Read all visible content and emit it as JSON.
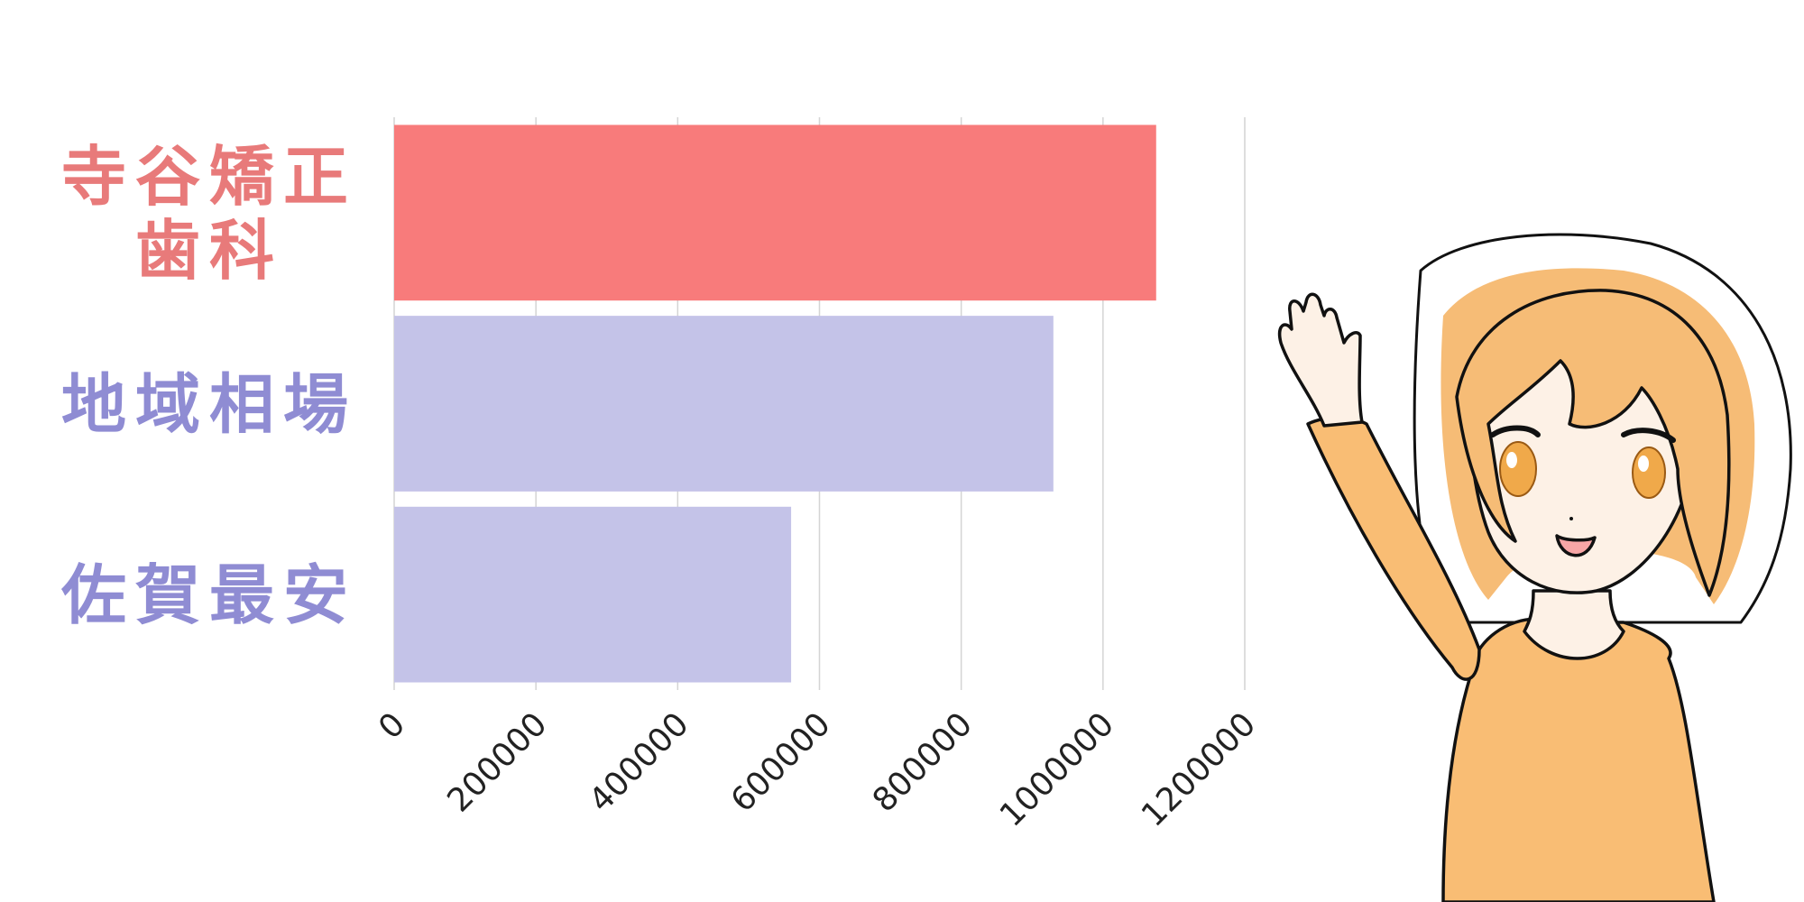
{
  "chart_data": {
    "type": "bar",
    "orientation": "horizontal",
    "categories": [
      [
        "寺谷矯正",
        "歯科"
      ],
      [
        "地域相場"
      ],
      [
        "佐賀最安"
      ]
    ],
    "values": [
      1075000,
      930000,
      560000
    ],
    "xlim": [
      0,
      1200000
    ],
    "xticks": [
      "0",
      "200000",
      "400000",
      "600000",
      "800000",
      "1000000",
      "1200000"
    ],
    "grid": true,
    "legend": "none"
  },
  "colors": {
    "highlight": "#f87b7b",
    "highlight_text": "#e87a7a",
    "other": "#c4c3e8",
    "other_text": "#8f8cd3",
    "grid": "#d4d4d4"
  },
  "illustration": {
    "name": "waving-girl-illustration"
  }
}
